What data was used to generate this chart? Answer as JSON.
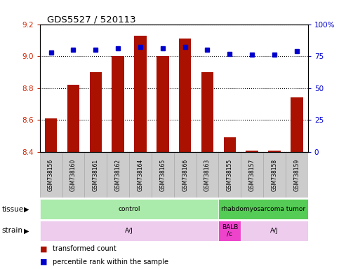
{
  "title": "GDS5527 / 520113",
  "samples": [
    "GSM738156",
    "GSM738160",
    "GSM738161",
    "GSM738162",
    "GSM738164",
    "GSM738165",
    "GSM738166",
    "GSM738163",
    "GSM738155",
    "GSM738157",
    "GSM738158",
    "GSM738159"
  ],
  "transformed_counts": [
    8.61,
    8.82,
    8.9,
    9.0,
    9.13,
    9.0,
    9.11,
    8.9,
    8.49,
    8.41,
    8.41,
    8.74
  ],
  "percentile_ranks": [
    78,
    80,
    80,
    81,
    82,
    81,
    82,
    80,
    77,
    76,
    76,
    79
  ],
  "ylim": [
    8.4,
    9.2
  ],
  "yticks_left": [
    8.4,
    8.6,
    8.8,
    9.0,
    9.2
  ],
  "yticks_right": [
    0,
    25,
    50,
    75,
    100
  ],
  "bar_color": "#aa1100",
  "dot_color": "#0000cc",
  "tissue_groups": [
    {
      "label": "control",
      "start": 0,
      "end": 8,
      "color": "#aaeaaa"
    },
    {
      "label": "rhabdomyosarcoma tumor",
      "start": 8,
      "end": 12,
      "color": "#55cc55"
    }
  ],
  "strain_groups": [
    {
      "label": "A/J",
      "start": 0,
      "end": 8,
      "color": "#eeccee"
    },
    {
      "label": "BALB\n/c",
      "start": 8,
      "end": 9,
      "color": "#ee44cc"
    },
    {
      "label": "A/J",
      "start": 9,
      "end": 12,
      "color": "#eeccee"
    }
  ],
  "legend_items": [
    {
      "color": "#aa1100",
      "label": "transformed count"
    },
    {
      "color": "#0000cc",
      "label": "percentile rank within the sample"
    }
  ],
  "tissue_label": "tissue",
  "strain_label": "strain",
  "tick_label_color_left": "#cc2200",
  "tick_label_color_right": "#0000cc",
  "label_box_color": "#cccccc",
  "label_box_border": "#aaaaaa"
}
